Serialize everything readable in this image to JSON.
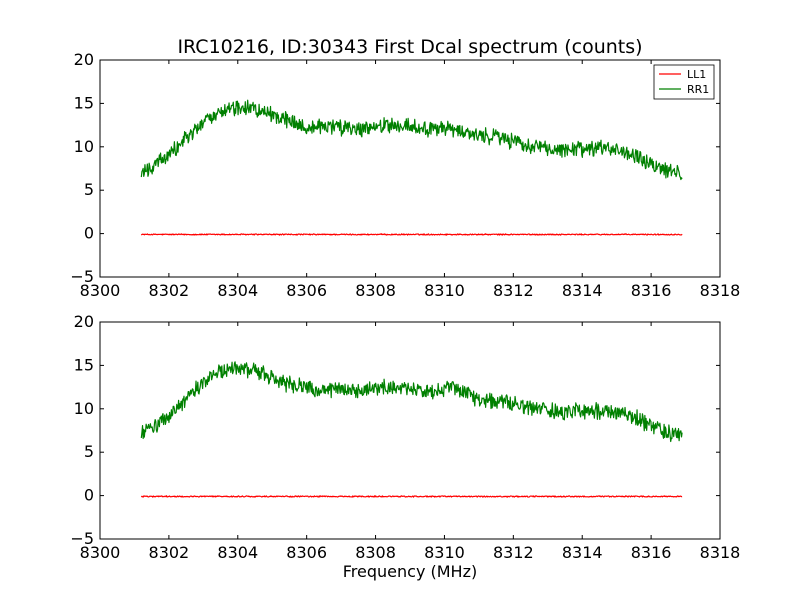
{
  "chart_data": {
    "type": "line",
    "title": "IRC10216, ID:30343 First Dcal spectrum (counts)",
    "xlabel": "Frequency (MHz)",
    "xlim": [
      8300,
      8318
    ],
    "ylim": [
      -5,
      20
    ],
    "x_ticks": [
      8300,
      8302,
      8304,
      8306,
      8308,
      8310,
      8312,
      8314,
      8316,
      8318
    ],
    "y_ticks": [
      -5,
      0,
      5,
      10,
      15,
      20
    ],
    "x_tick_labels": [
      "8300",
      "8302",
      "8304",
      "8306",
      "8308",
      "8310",
      "8312",
      "8314",
      "8316",
      "8318"
    ],
    "y_tick_labels": [
      "−5",
      "0",
      "5",
      "10",
      "15",
      "20"
    ],
    "grid": false,
    "legend_position": "top-right",
    "panels": [
      {
        "id": "top",
        "legend": [
          "LL1",
          "RR1"
        ],
        "series": [
          {
            "name": "LL1",
            "color": "#ff0000",
            "x": [
              8301.2,
              8302,
              8303,
              8304,
              8305,
              8306,
              8307,
              8308,
              8309,
              8310,
              8311,
              8312,
              8313,
              8314,
              8315,
              8316,
              8316.9
            ],
            "y": [
              -0.1,
              -0.1,
              -0.1,
              -0.1,
              -0.1,
              -0.1,
              -0.1,
              -0.1,
              -0.1,
              -0.1,
              -0.1,
              -0.1,
              -0.1,
              -0.1,
              -0.1,
              -0.1,
              -0.1
            ]
          },
          {
            "name": "RR1",
            "color": "#008000",
            "x": [
              8301.2,
              8301.5,
              8302,
              8302.5,
              8303,
              8303.5,
              8304,
              8304.5,
              8305,
              8305.5,
              8306,
              8306.5,
              8307,
              8307.5,
              8308,
              8308.5,
              8309,
              8309.5,
              8310,
              8310.5,
              8311,
              8311.5,
              8312,
              8312.5,
              8313,
              8313.5,
              8314,
              8314.5,
              8315,
              8315.5,
              8316,
              8316.5,
              8316.9
            ],
            "y": [
              7.2,
              7.6,
              9.0,
              11.0,
              12.8,
              14.0,
              14.6,
              14.3,
              13.8,
              13.0,
              12.4,
              12.3,
              12.2,
              12.0,
              12.3,
              12.5,
              12.4,
              12.0,
              12.2,
              11.8,
              11.3,
              11.0,
              10.6,
              10.2,
              9.8,
              9.6,
              9.7,
              9.8,
              9.6,
              9.0,
              8.0,
              7.2,
              7.0
            ]
          }
        ]
      },
      {
        "id": "bottom",
        "legend": [],
        "series": [
          {
            "name": "LL1",
            "color": "#ff0000",
            "x": [
              8301.2,
              8302,
              8303,
              8304,
              8305,
              8306,
              8307,
              8308,
              8309,
              8310,
              8311,
              8312,
              8313,
              8314,
              8315,
              8316,
              8316.9
            ],
            "y": [
              -0.1,
              -0.1,
              -0.1,
              -0.1,
              -0.1,
              -0.1,
              -0.1,
              -0.1,
              -0.1,
              -0.1,
              -0.1,
              -0.1,
              -0.1,
              -0.1,
              -0.1,
              -0.1,
              -0.1
            ]
          },
          {
            "name": "RR1",
            "color": "#008000",
            "x": [
              8301.2,
              8301.5,
              8302,
              8302.5,
              8303,
              8303.5,
              8304,
              8304.5,
              8305,
              8305.5,
              8306,
              8306.5,
              8307,
              8307.5,
              8308,
              8308.5,
              8309,
              8309.5,
              8310,
              8310.5,
              8311,
              8311.5,
              8312,
              8312.5,
              8313,
              8313.5,
              8314,
              8314.5,
              8315,
              8315.5,
              8316,
              8316.5,
              8316.9
            ],
            "y": [
              7.2,
              7.8,
              9.2,
              11.2,
              13.0,
              14.2,
              14.6,
              14.4,
              13.6,
              12.8,
              12.5,
              12.2,
              12.1,
              12.0,
              12.4,
              12.6,
              12.4,
              12.0,
              12.3,
              12.2,
              11.0,
              10.8,
              10.6,
              10.2,
              9.8,
              9.6,
              9.8,
              9.7,
              9.6,
              9.2,
              8.0,
              7.2,
              7.0
            ]
          }
        ]
      }
    ]
  }
}
